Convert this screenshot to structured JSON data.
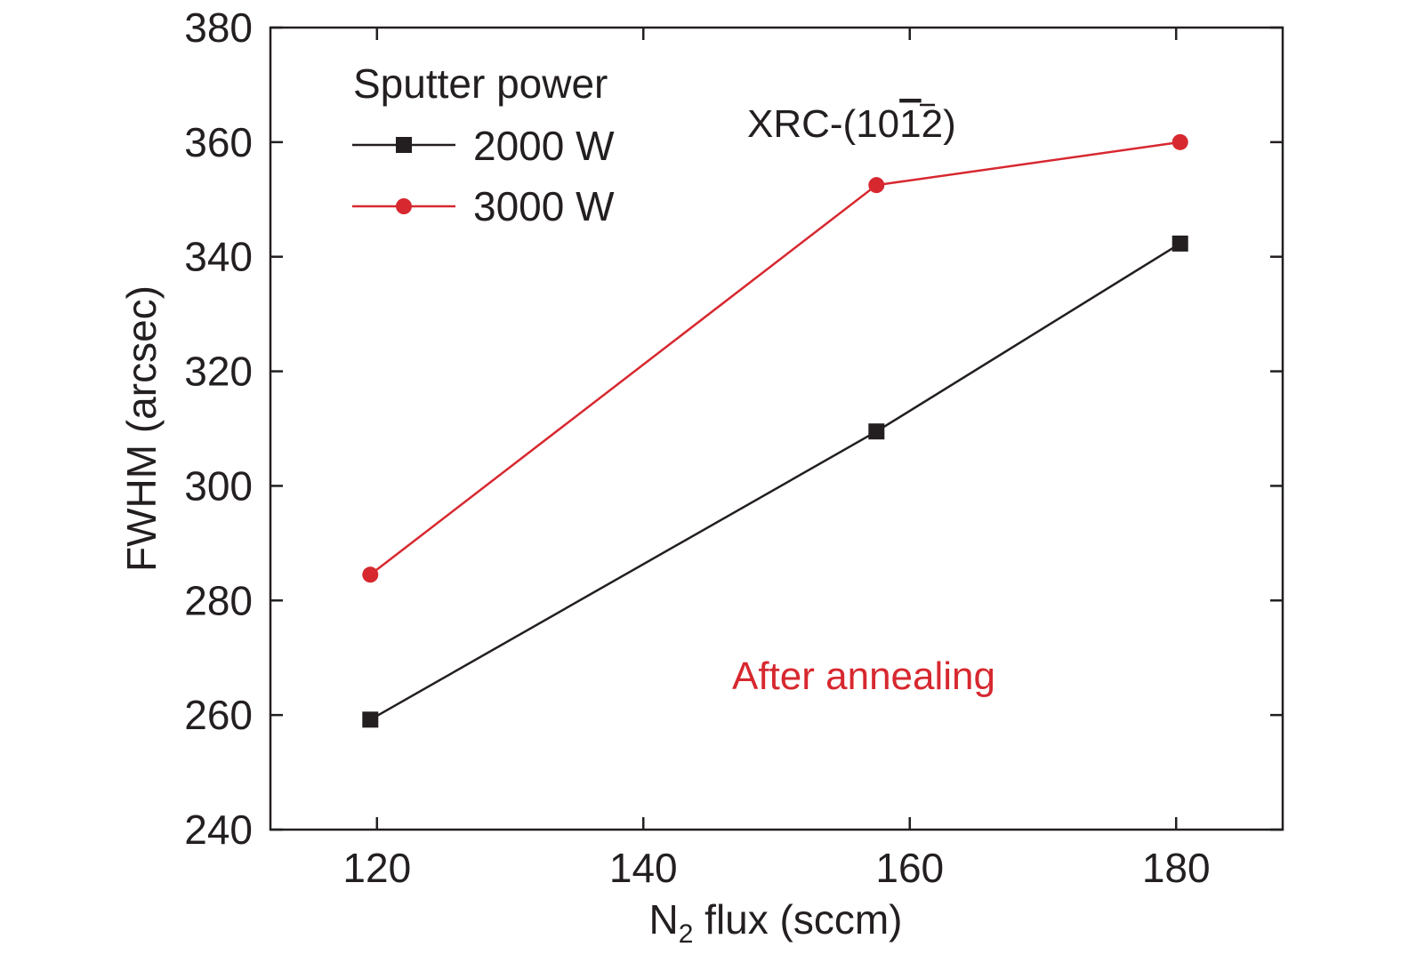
{
  "chart_data": {
    "type": "line",
    "xlabel_main": "N",
    "xlabel_sub": "2",
    "xlabel_rest": " flux (sccm)",
    "ylabel": "FWHM (arcsec)",
    "xlim": [
      112,
      188
    ],
    "ylim": [
      240,
      380
    ],
    "x_ticks": [
      120,
      140,
      160,
      180
    ],
    "y_ticks": [
      240,
      260,
      280,
      300,
      320,
      340,
      360,
      380
    ],
    "legend": {
      "title": "Sputter power",
      "placement": "top-left"
    },
    "series": [
      {
        "name": "2000 W",
        "color": "#231f20",
        "marker": "square",
        "x": [
          119.5,
          157.5,
          180.3
        ],
        "y": [
          259.2,
          309.5,
          342.3
        ]
      },
      {
        "name": "3000 W",
        "color": "#d7282f",
        "marker": "circle",
        "x": [
          119.5,
          157.5,
          180.3
        ],
        "y": [
          284.5,
          352.5,
          360.0
        ]
      }
    ],
    "annotations": [
      {
        "id": "xrc",
        "prefix": "XRC-(10",
        "overbar": "1",
        "suffix": "2)",
        "color": "#231f20"
      },
      {
        "id": "after",
        "text": "After annealing",
        "color": "#d7282f"
      }
    ]
  }
}
